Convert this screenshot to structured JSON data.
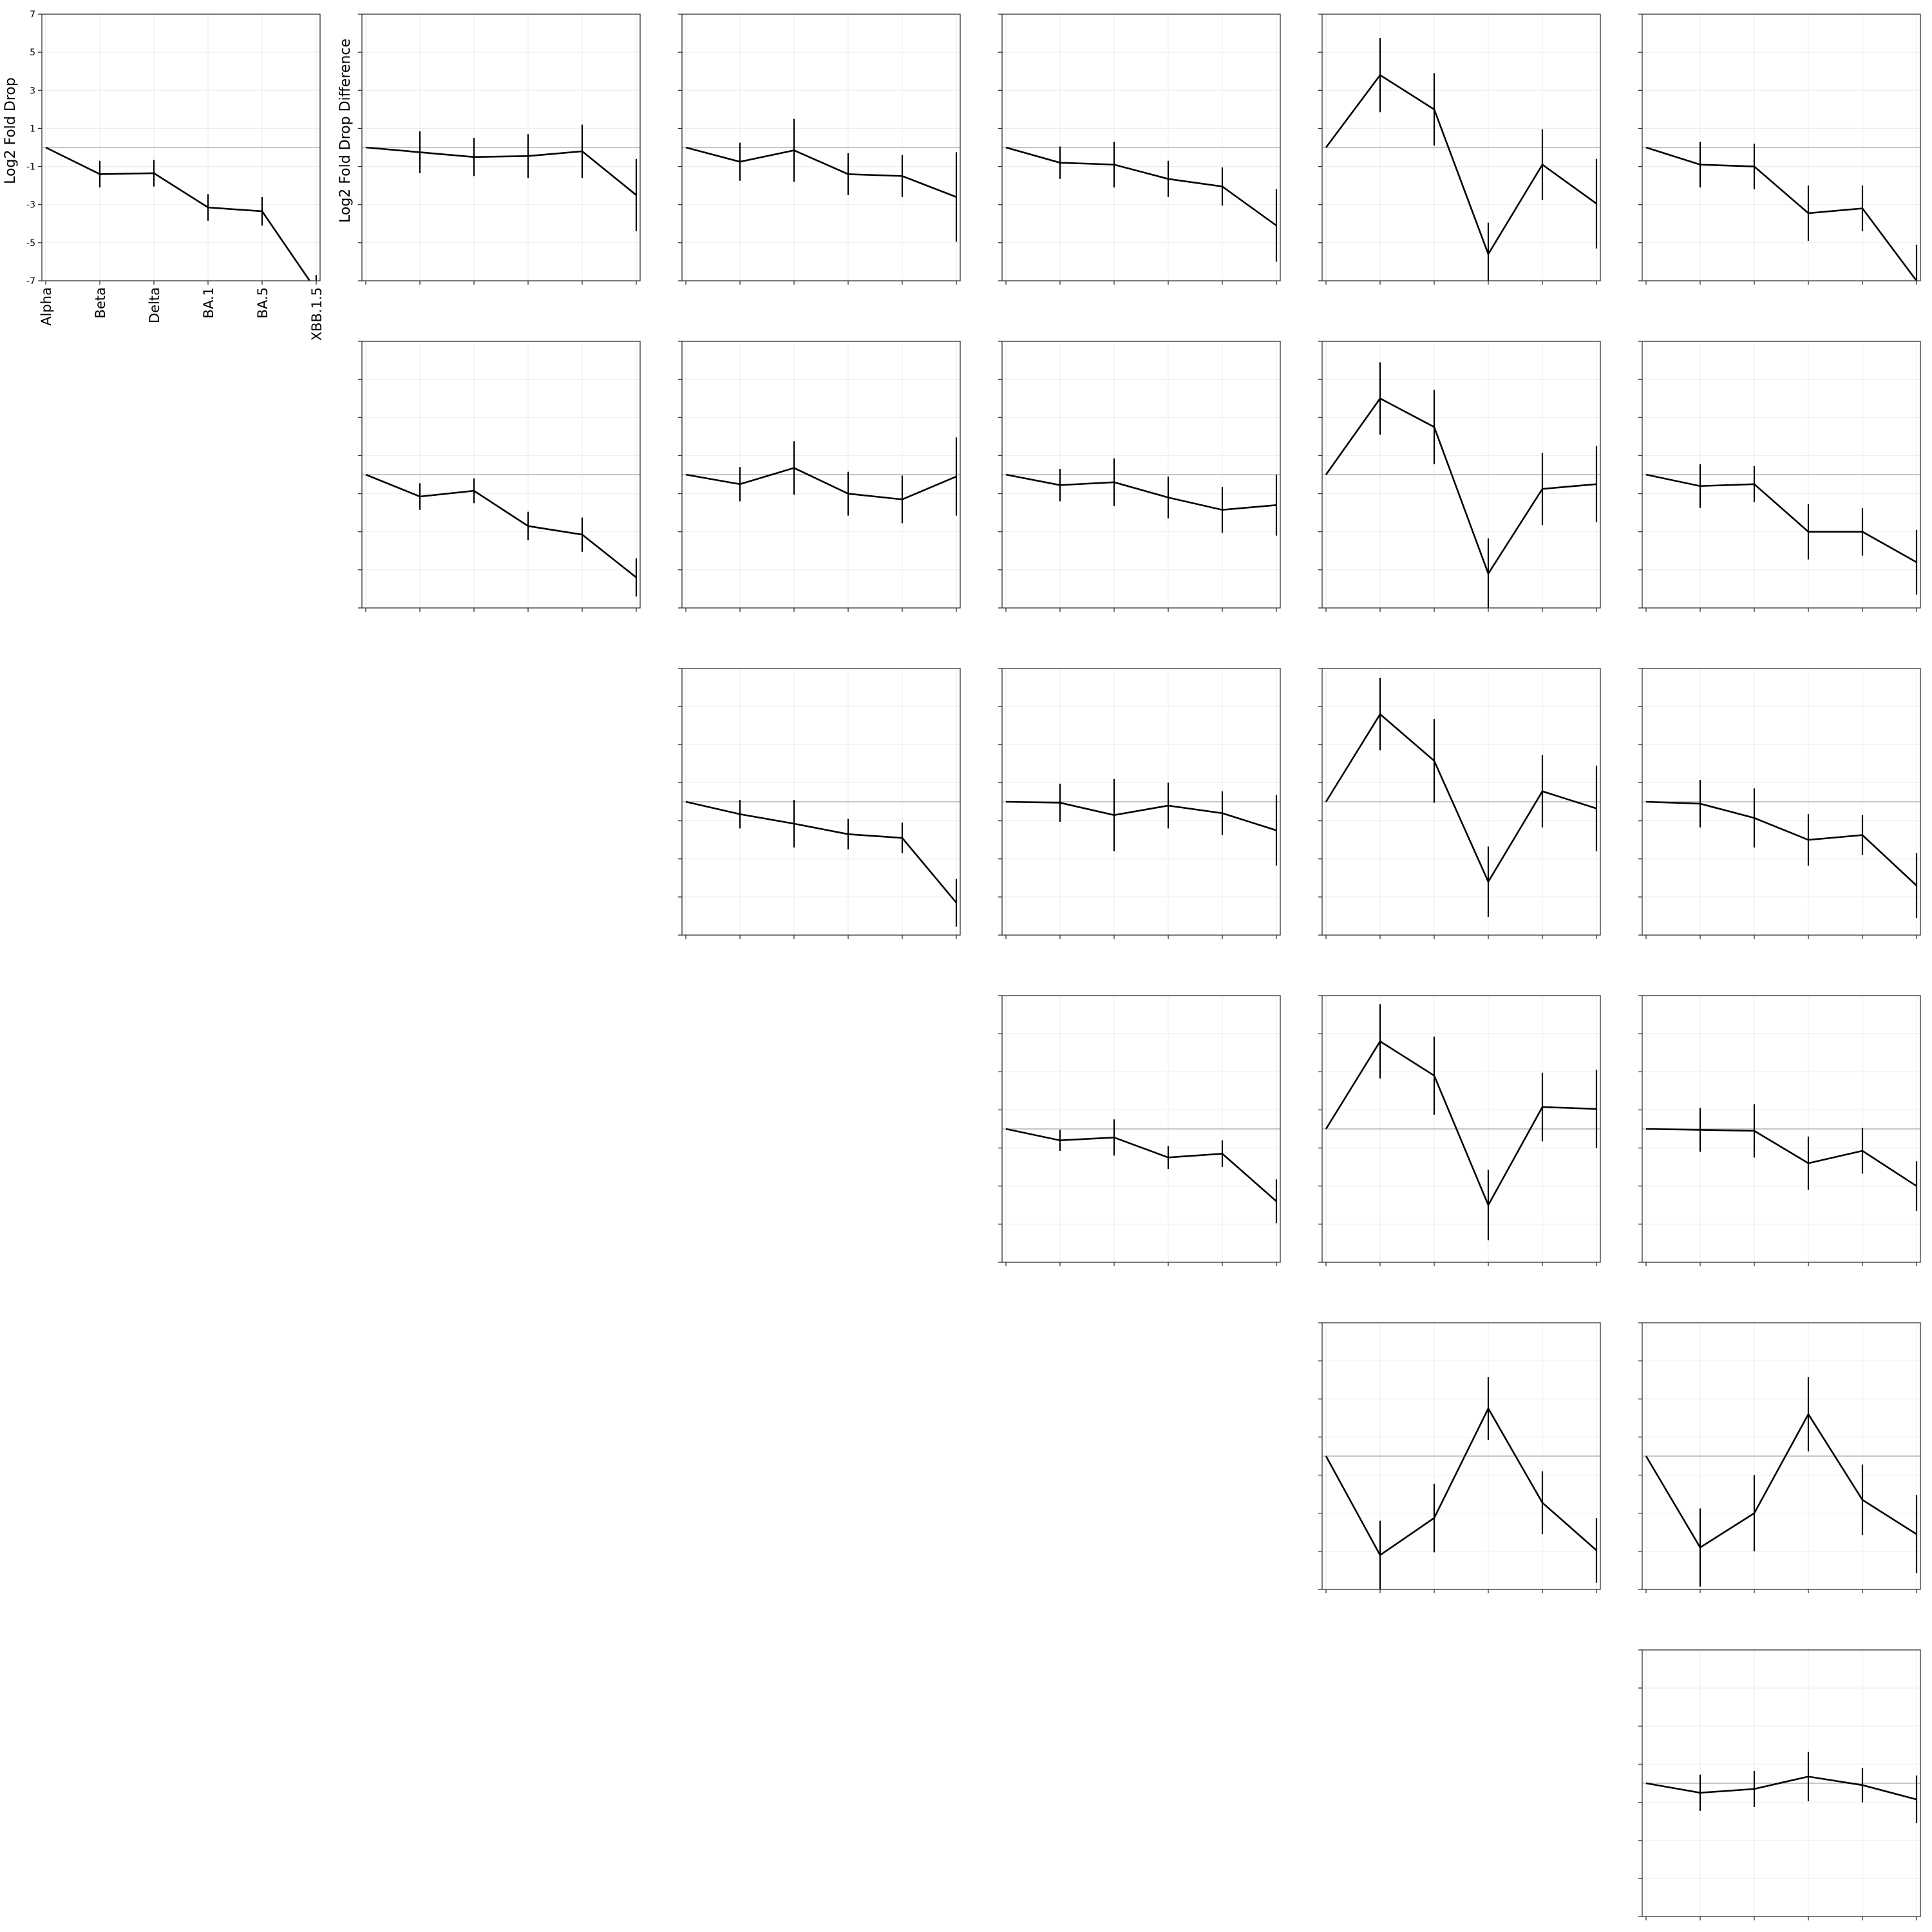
{
  "figure": {
    "y_label_main": "Log2 Fold Drop",
    "y_label_diff": "Log2 Fold Drop Difference",
    "categories": [
      "Alpha",
      "Beta",
      "Delta",
      "BA.1",
      "BA.5",
      "XBB.1.5"
    ],
    "y_ticks": [
      "7",
      "5",
      "3",
      "1",
      "-1",
      "-3",
      "-5",
      "-7"
    ]
  },
  "chart_data": [
    {
      "type": "line",
      "row": 1,
      "col": 1,
      "categories": [
        "Alpha",
        "Beta",
        "Delta",
        "BA.1",
        "BA.5",
        "XBB.1.5"
      ],
      "values": [
        0,
        -1.4,
        -1.35,
        -3.15,
        -3.35,
        -7.5
      ],
      "error": [
        0,
        0.7,
        0.7,
        0.7,
        0.75,
        0.8
      ],
      "ylabel": "Log2 Fold Drop",
      "ylim": [
        -7,
        7
      ],
      "reference_line": 0,
      "grid": true
    },
    {
      "type": "line",
      "row": 1,
      "col": 2,
      "categories": [
        "Alpha",
        "Beta",
        "Delta",
        "BA.1",
        "BA.5",
        "XBB.1.5"
      ],
      "values": [
        0,
        -0.25,
        -0.5,
        -0.45,
        -0.2,
        -2.5
      ],
      "error": [
        0,
        1.1,
        1.0,
        1.15,
        1.4,
        1.9
      ],
      "ylabel": "Log2 Fold Drop Difference",
      "ylim": [
        -7,
        7
      ],
      "reference_line": 0,
      "grid": true
    },
    {
      "type": "line",
      "row": 1,
      "col": 3,
      "categories": [
        "Alpha",
        "Beta",
        "Delta",
        "BA.1",
        "BA.5",
        "XBB.1.5"
      ],
      "values": [
        0,
        -0.75,
        -0.15,
        -1.4,
        -1.5,
        -2.6
      ],
      "error": [
        0,
        1.0,
        1.65,
        1.1,
        1.1,
        2.35
      ],
      "ylim": [
        -7,
        7
      ],
      "reference_line": 0,
      "grid": true
    },
    {
      "type": "line",
      "row": 1,
      "col": 4,
      "categories": [
        "Alpha",
        "Beta",
        "Delta",
        "BA.1",
        "BA.5",
        "XBB.1.5"
      ],
      "values": [
        0,
        -0.8,
        -0.9,
        -1.65,
        -2.05,
        -4.1
      ],
      "error": [
        0,
        0.85,
        1.2,
        0.95,
        1.0,
        1.9
      ],
      "ylim": [
        -7,
        7
      ],
      "reference_line": 0,
      "grid": true
    },
    {
      "type": "line",
      "row": 1,
      "col": 5,
      "categories": [
        "Alpha",
        "Beta",
        "Delta",
        "BA.1",
        "BA.5",
        "XBB.1.5"
      ],
      "values": [
        0,
        3.8,
        2.0,
        -5.6,
        -0.9,
        -2.95
      ],
      "error": [
        0,
        1.95,
        1.9,
        1.65,
        1.85,
        2.35
      ],
      "ylim": [
        -7,
        7
      ],
      "reference_line": 0,
      "grid": true
    },
    {
      "type": "line",
      "row": 1,
      "col": 6,
      "categories": [
        "Alpha",
        "Beta",
        "Delta",
        "BA.1",
        "BA.5",
        "XBB.1.5"
      ],
      "values": [
        0,
        -0.9,
        -1.0,
        -3.45,
        -3.2,
        -7.0
      ],
      "error": [
        0,
        1.2,
        1.2,
        1.45,
        1.2,
        1.9
      ],
      "ylim": [
        -7,
        7
      ],
      "reference_line": 0,
      "grid": true
    },
    {
      "type": "line",
      "row": 2,
      "col": 2,
      "categories": [
        "Alpha",
        "Beta",
        "Delta",
        "BA.1",
        "BA.5",
        "XBB.1.5"
      ],
      "values": [
        0,
        -1.15,
        -0.85,
        -2.7,
        -3.15,
        -5.4
      ],
      "error": [
        0,
        0.7,
        0.65,
        0.75,
        0.9,
        1.0
      ],
      "ylim": [
        -7,
        7
      ],
      "reference_line": 0,
      "grid": true
    },
    {
      "type": "line",
      "row": 2,
      "col": 3,
      "categories": [
        "Alpha",
        "Beta",
        "Delta",
        "BA.1",
        "BA.5",
        "XBB.1.5"
      ],
      "values": [
        0,
        -0.5,
        0.35,
        -1.0,
        -1.3,
        -0.1
      ],
      "error": [
        0,
        0.9,
        1.4,
        1.15,
        1.25,
        2.05
      ],
      "ylim": [
        -7,
        7
      ],
      "reference_line": 0,
      "grid": true
    },
    {
      "type": "line",
      "row": 2,
      "col": 4,
      "categories": [
        "Alpha",
        "Beta",
        "Delta",
        "BA.1",
        "BA.5",
        "XBB.1.5"
      ],
      "values": [
        0,
        -0.55,
        -0.4,
        -1.2,
        -1.85,
        -1.6
      ],
      "error": [
        0,
        0.85,
        1.25,
        1.1,
        1.2,
        1.6
      ],
      "ylim": [
        -7,
        7
      ],
      "reference_line": 0,
      "grid": true
    },
    {
      "type": "line",
      "row": 2,
      "col": 5,
      "categories": [
        "Alpha",
        "Beta",
        "Delta",
        "BA.1",
        "BA.5",
        "XBB.1.5"
      ],
      "values": [
        0,
        4.0,
        2.5,
        -5.2,
        -0.75,
        -0.5
      ],
      "error": [
        0,
        1.9,
        1.95,
        1.85,
        1.9,
        2.0
      ],
      "ylim": [
        -7,
        7
      ],
      "reference_line": 0,
      "grid": true
    },
    {
      "type": "line",
      "row": 2,
      "col": 6,
      "categories": [
        "Alpha",
        "Beta",
        "Delta",
        "BA.1",
        "BA.5",
        "XBB.1.5"
      ],
      "values": [
        0,
        -0.6,
        -0.5,
        -3.0,
        -3.0,
        -4.6
      ],
      "error": [
        0,
        1.15,
        0.95,
        1.45,
        1.25,
        1.7
      ],
      "ylim": [
        -7,
        7
      ],
      "reference_line": 0,
      "grid": true
    },
    {
      "type": "line",
      "row": 3,
      "col": 3,
      "categories": [
        "Alpha",
        "Beta",
        "Delta",
        "BA.1",
        "BA.5",
        "XBB.1.5"
      ],
      "values": [
        0,
        -0.65,
        -1.15,
        -1.7,
        -1.9,
        -5.3
      ],
      "error": [
        0,
        0.75,
        1.25,
        0.8,
        0.8,
        1.25
      ],
      "ylim": [
        -7,
        7
      ],
      "reference_line": 0,
      "grid": true
    },
    {
      "type": "line",
      "row": 3,
      "col": 4,
      "categories": [
        "Alpha",
        "Beta",
        "Delta",
        "BA.1",
        "BA.5",
        "XBB.1.5"
      ],
      "values": [
        0,
        -0.05,
        -0.7,
        -0.2,
        -0.6,
        -1.5
      ],
      "error": [
        0,
        1.0,
        1.9,
        1.2,
        1.15,
        1.85
      ],
      "ylim": [
        -7,
        7
      ],
      "reference_line": 0,
      "grid": true
    },
    {
      "type": "line",
      "row": 3,
      "col": 5,
      "categories": [
        "Alpha",
        "Beta",
        "Delta",
        "BA.1",
        "BA.5",
        "XBB.1.5"
      ],
      "values": [
        0,
        4.6,
        2.15,
        -4.2,
        0.55,
        -0.35
      ],
      "error": [
        0,
        1.9,
        2.2,
        1.85,
        1.9,
        2.25
      ],
      "ylim": [
        -7,
        7
      ],
      "reference_line": 0,
      "grid": true
    },
    {
      "type": "line",
      "row": 3,
      "col": 6,
      "categories": [
        "Alpha",
        "Beta",
        "Delta",
        "BA.1",
        "BA.5",
        "XBB.1.5"
      ],
      "values": [
        0,
        -0.1,
        -0.85,
        -2.0,
        -1.75,
        -4.4
      ],
      "error": [
        0,
        1.25,
        1.55,
        1.35,
        1.05,
        1.7
      ],
      "ylim": [
        -7,
        7
      ],
      "reference_line": 0,
      "grid": true
    },
    {
      "type": "line",
      "row": 4,
      "col": 4,
      "categories": [
        "Alpha",
        "Beta",
        "Delta",
        "BA.1",
        "BA.5",
        "XBB.1.5"
      ],
      "values": [
        0,
        -0.6,
        -0.45,
        -1.5,
        -1.3,
        -3.8
      ],
      "error": [
        0,
        0.55,
        0.95,
        0.6,
        0.7,
        1.15
      ],
      "ylim": [
        -7,
        7
      ],
      "reference_line": 0,
      "grid": true
    },
    {
      "type": "line",
      "row": 4,
      "col": 5,
      "categories": [
        "Alpha",
        "Beta",
        "Delta",
        "BA.1",
        "BA.5",
        "XBB.1.5"
      ],
      "values": [
        0,
        4.6,
        2.8,
        -4.0,
        1.15,
        1.05
      ],
      "error": [
        0,
        1.95,
        2.05,
        1.85,
        1.8,
        2.05
      ],
      "ylim": [
        -7,
        7
      ],
      "reference_line": 0,
      "grid": true
    },
    {
      "type": "line",
      "row": 4,
      "col": 6,
      "categories": [
        "Alpha",
        "Beta",
        "Delta",
        "BA.1",
        "BA.5",
        "XBB.1.5"
      ],
      "values": [
        0,
        -0.05,
        -0.1,
        -1.8,
        -1.15,
        -3.0
      ],
      "error": [
        0,
        1.15,
        1.4,
        1.4,
        1.2,
        1.3
      ],
      "ylim": [
        -7,
        7
      ],
      "reference_line": 0,
      "grid": true
    },
    {
      "type": "line",
      "row": 5,
      "col": 5,
      "categories": [
        "Alpha",
        "Beta",
        "Delta",
        "BA.1",
        "BA.5",
        "XBB.1.5"
      ],
      "values": [
        0,
        -5.2,
        -3.25,
        2.5,
        -2.45,
        -4.95
      ],
      "error": [
        0,
        1.8,
        1.8,
        1.65,
        1.65,
        1.7
      ],
      "ylim": [
        -7,
        7
      ],
      "reference_line": 0,
      "grid": true
    },
    {
      "type": "line",
      "row": 5,
      "col": 6,
      "categories": [
        "Alpha",
        "Beta",
        "Delta",
        "BA.1",
        "BA.5",
        "XBB.1.5"
      ],
      "values": [
        0,
        -4.8,
        -3.0,
        2.2,
        -2.3,
        -4.1
      ],
      "error": [
        0,
        2.05,
        2.0,
        1.95,
        1.85,
        2.05
      ],
      "ylim": [
        -7,
        7
      ],
      "reference_line": 0,
      "grid": true
    },
    {
      "type": "line",
      "row": 6,
      "col": 6,
      "categories": [
        "Alpha",
        "Beta",
        "Delta",
        "BA.1",
        "BA.5",
        "XBB.1.5"
      ],
      "values": [
        0,
        -0.5,
        -0.3,
        0.35,
        -0.1,
        -0.85
      ],
      "error": [
        0,
        0.95,
        0.95,
        1.3,
        0.9,
        1.25
      ],
      "ylim": [
        -7,
        7
      ],
      "reference_line": 0,
      "grid": true
    }
  ]
}
